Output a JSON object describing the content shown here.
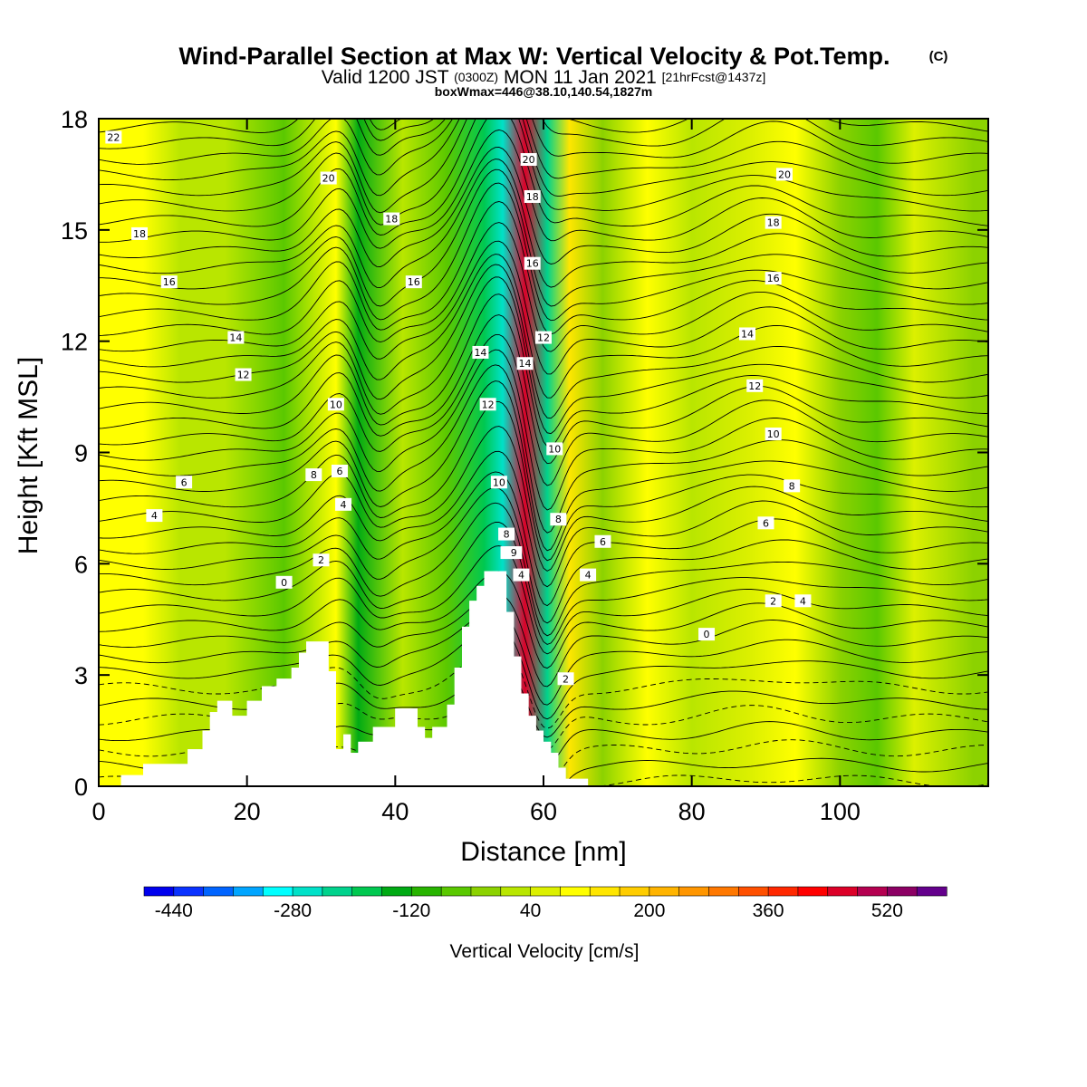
{
  "title": {
    "main": "Wind-Parallel Section at Max W: Vertical Velocity & Pot.Temp.",
    "main_units": "(C)",
    "valid_prefix": "Valid 1200 JST",
    "valid_z": "(0300Z)",
    "valid_date": "MON 11 Jan 2021",
    "fcst": "[21hrFcst@1437z]",
    "box": "boxWmax=446@38.10,140.54,1827m"
  },
  "chart_data": {
    "type": "heatmap",
    "xlabel": "Distance [nm]",
    "ylabel": "Height [Kft MSL]",
    "xlim": [
      0,
      120
    ],
    "ylim": [
      0,
      18
    ],
    "x_ticks": [
      "0",
      "20",
      "40",
      "60",
      "80",
      "100"
    ],
    "y_ticks": [
      "0",
      "3",
      "6",
      "9",
      "12",
      "15",
      "18"
    ],
    "colorbar": {
      "label": "Vertical Velocity [cm/s]",
      "tick_labels": [
        "-440",
        "-280",
        "-120",
        "40",
        "200",
        "360",
        "520"
      ],
      "colors": [
        "#0000ee",
        "#0a32ff",
        "#0064ff",
        "#00a5ff",
        "#00ffff",
        "#00e1c8",
        "#00d28c",
        "#00c850",
        "#00aa14",
        "#28b400",
        "#5ac800",
        "#8cd200",
        "#b9e600",
        "#dcf000",
        "#ffff00",
        "#ffe600",
        "#ffcd00",
        "#ffb400",
        "#ff9600",
        "#ff7800",
        "#ff5000",
        "#ff2800",
        "#ff0000",
        "#dc0028",
        "#b40050",
        "#8c0064",
        "#64008c"
      ]
    },
    "terrain_profile": {
      "x_nm": [
        0,
        3,
        3,
        6,
        6,
        12,
        12,
        14,
        14,
        15,
        15,
        16,
        16,
        18,
        18,
        20,
        20,
        22,
        22,
        24,
        24,
        26,
        26,
        27,
        27,
        28,
        28,
        31,
        31,
        32,
        32,
        33,
        33,
        34,
        34,
        35,
        35,
        37,
        37,
        38,
        38,
        40,
        40,
        43,
        43,
        44,
        44,
        45,
        45,
        47,
        47,
        48,
        48,
        49,
        49,
        50,
        50,
        51,
        51,
        52,
        52,
        53,
        53,
        55,
        55,
        56,
        56,
        57,
        57,
        58,
        58,
        59,
        59,
        60,
        60,
        61,
        61,
        62,
        62,
        63,
        63,
        66,
        66,
        120
      ],
      "height_kft": [
        0,
        0,
        0.3,
        0.3,
        0.6,
        0.6,
        1.0,
        1.0,
        1.5,
        1.5,
        2.0,
        2.0,
        2.3,
        2.3,
        1.9,
        1.9,
        2.3,
        2.3,
        2.7,
        2.7,
        2.9,
        2.9,
        3.2,
        3.2,
        3.6,
        3.6,
        3.9,
        3.9,
        3.1,
        3.1,
        1.0,
        1.0,
        1.4,
        1.4,
        0.9,
        0.9,
        1.2,
        1.2,
        1.6,
        1.6,
        1.6,
        1.6,
        2.1,
        2.1,
        1.6,
        1.6,
        1.3,
        1.3,
        1.6,
        1.6,
        2.2,
        2.2,
        3.2,
        3.2,
        4.3,
        4.3,
        5.0,
        5.0,
        5.4,
        5.4,
        5.8,
        5.8,
        5.8,
        5.8,
        4.7,
        4.7,
        3.5,
        3.5,
        2.5,
        2.5,
        1.9,
        1.9,
        1.5,
        1.5,
        1.2,
        1.2,
        0.9,
        0.9,
        0.5,
        0.5,
        0.2,
        0.2,
        0,
        0
      ]
    },
    "vertical_velocity_bands": [
      {
        "x_nm": 6,
        "w_cms": 90
      },
      {
        "x_nm": 11,
        "w_cms": 0
      },
      {
        "x_nm": 17,
        "w_cms": 30
      },
      {
        "x_nm": 25,
        "w_cms": -45
      },
      {
        "x_nm": 32,
        "w_cms": 110
      },
      {
        "x_nm": 35,
        "w_cms": -150
      },
      {
        "x_nm": 41,
        "w_cms": 30
      },
      {
        "x_nm": 47,
        "w_cms": -60
      },
      {
        "x_nm": 52,
        "w_cms": -200
      },
      {
        "x_nm": 54.5,
        "w_cms": -270
      },
      {
        "x_nm": 57.5,
        "w_cms": 446
      },
      {
        "x_nm": 60.5,
        "w_cms": -230
      },
      {
        "x_nm": 63.5,
        "w_cms": 150
      },
      {
        "x_nm": 68,
        "w_cms": -40
      },
      {
        "x_nm": 74,
        "w_cms": 80
      },
      {
        "x_nm": 80,
        "w_cms": 0
      },
      {
        "x_nm": 88,
        "w_cms": 60
      },
      {
        "x_nm": 94,
        "w_cms": 110
      },
      {
        "x_nm": 100,
        "w_cms": -30
      },
      {
        "x_nm": 105,
        "w_cms": -80
      },
      {
        "x_nm": 110,
        "w_cms": 45
      },
      {
        "x_nm": 118,
        "w_cms": -30
      }
    ],
    "pot_temp_contour_labels": [
      {
        "value": "22",
        "x_nm": 2,
        "height_kft": 17.5
      },
      {
        "value": "18",
        "x_nm": 5.5,
        "height_kft": 14.9
      },
      {
        "value": "16",
        "x_nm": 9.5,
        "height_kft": 13.6
      },
      {
        "value": "14",
        "x_nm": 18.5,
        "height_kft": 12.1
      },
      {
        "value": "12",
        "x_nm": 19.5,
        "height_kft": 11.1
      },
      {
        "value": "6",
        "x_nm": 11.5,
        "height_kft": 8.2
      },
      {
        "value": "4",
        "x_nm": 7.5,
        "height_kft": 7.3
      },
      {
        "value": "0",
        "x_nm": 25,
        "height_kft": 5.5
      },
      {
        "value": "2",
        "x_nm": 30,
        "height_kft": 6.1
      },
      {
        "value": "8",
        "x_nm": 29,
        "height_kft": 8.4
      },
      {
        "value": "6",
        "x_nm": 32.5,
        "height_kft": 8.5
      },
      {
        "value": "4",
        "x_nm": 33,
        "height_kft": 7.6
      },
      {
        "value": "10",
        "x_nm": 32,
        "height_kft": 10.3
      },
      {
        "value": "20",
        "x_nm": 31,
        "height_kft": 16.4
      },
      {
        "value": "18",
        "x_nm": 39.5,
        "height_kft": 15.3
      },
      {
        "value": "16",
        "x_nm": 42.5,
        "height_kft": 13.6
      },
      {
        "value": "14",
        "x_nm": 51.5,
        "height_kft": 11.7
      },
      {
        "value": "12",
        "x_nm": 52.5,
        "height_kft": 10.3
      },
      {
        "value": "10",
        "x_nm": 54,
        "height_kft": 8.2
      },
      {
        "value": "8",
        "x_nm": 55,
        "height_kft": 6.8
      },
      {
        "value": "6",
        "x_nm": 55.3,
        "height_kft": 6.3
      },
      {
        "value": "9",
        "x_nm": 56,
        "height_kft": 6.3
      },
      {
        "value": "4",
        "x_nm": 57,
        "height_kft": 5.7
      },
      {
        "value": "20",
        "x_nm": 58,
        "height_kft": 16.9
      },
      {
        "value": "18",
        "x_nm": 58.5,
        "height_kft": 15.9
      },
      {
        "value": "16",
        "x_nm": 58.5,
        "height_kft": 14.1
      },
      {
        "value": "12",
        "x_nm": 60,
        "height_kft": 12.1
      },
      {
        "value": "14",
        "x_nm": 57.5,
        "height_kft": 11.4
      },
      {
        "value": "10",
        "x_nm": 61.5,
        "height_kft": 9.1
      },
      {
        "value": "8",
        "x_nm": 62,
        "height_kft": 7.2
      },
      {
        "value": "6",
        "x_nm": 68,
        "height_kft": 6.6
      },
      {
        "value": "4",
        "x_nm": 66,
        "height_kft": 5.7
      },
      {
        "value": "2",
        "x_nm": 63,
        "height_kft": 2.9
      },
      {
        "value": "20",
        "x_nm": 92.5,
        "height_kft": 16.5
      },
      {
        "value": "18",
        "x_nm": 91,
        "height_kft": 15.2
      },
      {
        "value": "16",
        "x_nm": 91,
        "height_kft": 13.7
      },
      {
        "value": "14",
        "x_nm": 87.5,
        "height_kft": 12.2
      },
      {
        "value": "12",
        "x_nm": 88.5,
        "height_kft": 10.8
      },
      {
        "value": "10",
        "x_nm": 91,
        "height_kft": 9.5
      },
      {
        "value": "8",
        "x_nm": 93.5,
        "height_kft": 8.1
      },
      {
        "value": "6",
        "x_nm": 90,
        "height_kft": 7.1
      },
      {
        "value": "2",
        "x_nm": 91,
        "height_kft": 5.0
      },
      {
        "value": "4",
        "x_nm": 95,
        "height_kft": 5.0
      },
      {
        "value": "0",
        "x_nm": 82,
        "height_kft": 4.1
      }
    ]
  }
}
